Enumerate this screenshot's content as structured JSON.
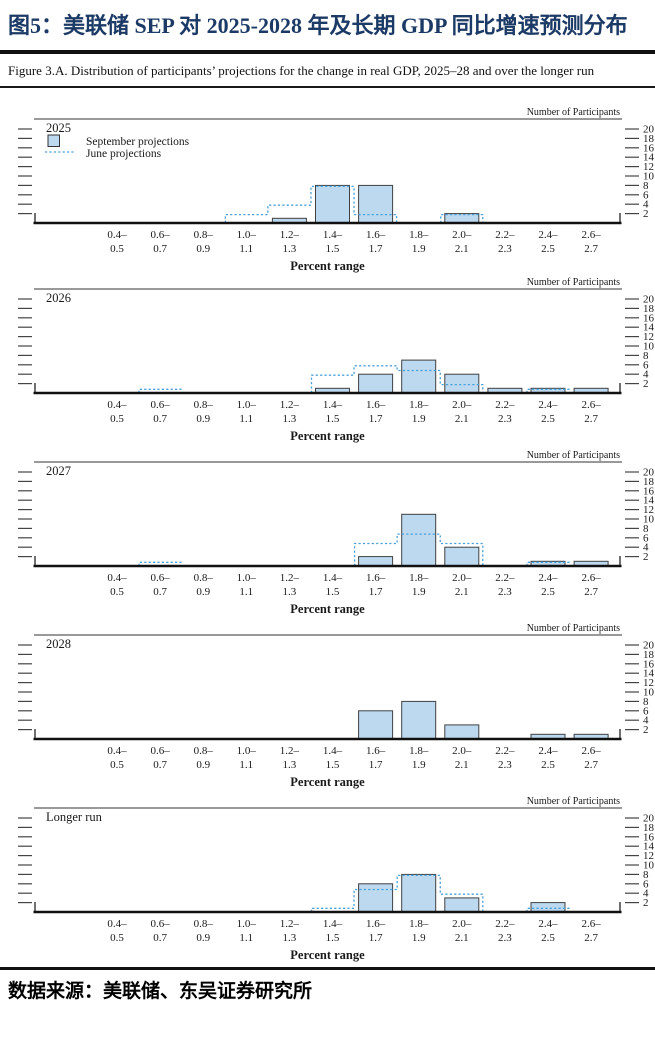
{
  "header": {
    "title": "图5：美联储 SEP 对 2025-2028 年及长期 GDP 同比增速预测分布"
  },
  "caption": "Figure 3.A. Distribution of participants’ projections for the change in real GDP, 2025–28 and over the longer run",
  "footer": {
    "source": "数据来源：美联储、东吴证券研究所"
  },
  "colors": {
    "bar_fill": "#bdd9ef",
    "bar_stroke": "#404040",
    "june_line": "#4aa1d9",
    "axis_text": "#1a1a1a",
    "title_navy": "#1c3a66"
  },
  "chart_data": [
    {
      "type": "bar",
      "title": "2025",
      "xlabel": "Percent range",
      "ylabel": "Number of Participants",
      "ylim": [
        0,
        22
      ],
      "yticks": [
        2,
        4,
        6,
        8,
        10,
        12,
        14,
        16,
        18,
        20
      ],
      "categories": [
        "0.4–0.5",
        "0.6–0.7",
        "0.8–0.9",
        "1.0–1.1",
        "1.2–1.3",
        "1.4–1.5",
        "1.6–1.7",
        "1.8–1.9",
        "2.0–2.1",
        "2.2–2.3",
        "2.4–2.5",
        "2.6–2.7"
      ],
      "legend": [
        "September projections",
        "June projections"
      ],
      "series": [
        {
          "name": "September projections",
          "style": "bar",
          "values": [
            0,
            0,
            0,
            0,
            1,
            8,
            8,
            0,
            2,
            0,
            0,
            0
          ]
        },
        {
          "name": "June projections",
          "style": "dashed-step",
          "values": [
            0,
            0,
            0,
            2,
            4,
            8,
            2,
            0,
            2,
            0,
            0,
            0
          ]
        }
      ]
    },
    {
      "type": "bar",
      "title": "2026",
      "xlabel": "Percent range",
      "ylabel": "Number of Participants",
      "ylim": [
        0,
        22
      ],
      "yticks": [
        2,
        4,
        6,
        8,
        10,
        12,
        14,
        16,
        18,
        20
      ],
      "categories": [
        "0.4–0.5",
        "0.6–0.7",
        "0.8–0.9",
        "1.0–1.1",
        "1.2–1.3",
        "1.4–1.5",
        "1.6–1.7",
        "1.8–1.9",
        "2.0–2.1",
        "2.2–2.3",
        "2.4–2.5",
        "2.6–2.7"
      ],
      "series": [
        {
          "name": "September projections",
          "style": "bar",
          "values": [
            0,
            0,
            0,
            0,
            0,
            1,
            4,
            7,
            4,
            1,
            1,
            1
          ]
        },
        {
          "name": "June projections",
          "style": "dashed-step",
          "values": [
            0,
            1,
            0,
            0,
            0,
            4,
            6,
            5,
            2,
            0,
            1,
            0
          ]
        }
      ]
    },
    {
      "type": "bar",
      "title": "2027",
      "xlabel": "Percent range",
      "ylabel": "Number of Participants",
      "ylim": [
        0,
        22
      ],
      "yticks": [
        2,
        4,
        6,
        8,
        10,
        12,
        14,
        16,
        18,
        20
      ],
      "categories": [
        "0.4–0.5",
        "0.6–0.7",
        "0.8–0.9",
        "1.0–1.1",
        "1.2–1.3",
        "1.4–1.5",
        "1.6–1.7",
        "1.8–1.9",
        "2.0–2.1",
        "2.2–2.3",
        "2.4–2.5",
        "2.6–2.7"
      ],
      "series": [
        {
          "name": "September projections",
          "style": "bar",
          "values": [
            0,
            0,
            0,
            0,
            0,
            0,
            2,
            11,
            4,
            0,
            1,
            1
          ]
        },
        {
          "name": "June projections",
          "style": "dashed-step",
          "values": [
            0,
            1,
            0,
            0,
            0,
            0,
            5,
            7,
            5,
            0,
            1,
            0
          ]
        }
      ]
    },
    {
      "type": "bar",
      "title": "2028",
      "xlabel": "Percent range",
      "ylabel": "Number of Participants",
      "ylim": [
        0,
        22
      ],
      "yticks": [
        2,
        4,
        6,
        8,
        10,
        12,
        14,
        16,
        18,
        20
      ],
      "categories": [
        "0.4–0.5",
        "0.6–0.7",
        "0.8–0.9",
        "1.0–1.1",
        "1.2–1.3",
        "1.4–1.5",
        "1.6–1.7",
        "1.8–1.9",
        "2.0–2.1",
        "2.2–2.3",
        "2.4–2.5",
        "2.6–2.7"
      ],
      "series": [
        {
          "name": "September projections",
          "style": "bar",
          "values": [
            0,
            0,
            0,
            0,
            0,
            0,
            6,
            8,
            3,
            0,
            1,
            1
          ]
        }
      ]
    },
    {
      "type": "bar",
      "title": "Longer run",
      "xlabel": "Percent range",
      "ylabel": "Number of Participants",
      "ylim": [
        0,
        22
      ],
      "yticks": [
        2,
        4,
        6,
        8,
        10,
        12,
        14,
        16,
        18,
        20
      ],
      "categories": [
        "0.4–0.5",
        "0.6–0.7",
        "0.8–0.9",
        "1.0–1.1",
        "1.2–1.3",
        "1.4–1.5",
        "1.6–1.7",
        "1.8–1.9",
        "2.0–2.1",
        "2.2–2.3",
        "2.4–2.5",
        "2.6–2.7"
      ],
      "series": [
        {
          "name": "September projections",
          "style": "bar",
          "values": [
            0,
            0,
            0,
            0,
            0,
            0,
            6,
            8,
            3,
            0,
            2,
            0
          ]
        },
        {
          "name": "June projections",
          "style": "dashed-step",
          "values": [
            0,
            0,
            0,
            0,
            0,
            1,
            5,
            8,
            4,
            0,
            1,
            0
          ]
        }
      ]
    }
  ]
}
